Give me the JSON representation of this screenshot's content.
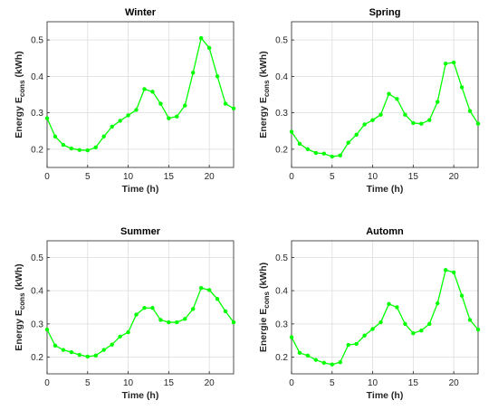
{
  "chart_data": [
    {
      "type": "line",
      "title": "Winter",
      "xlabel": "Time (h)",
      "ylabel": "Energy  E",
      "ylabel_sub": "cons",
      "ylabel_unit": "(kWh)",
      "x": [
        0,
        1,
        2,
        3,
        4,
        5,
        6,
        7,
        8,
        9,
        10,
        11,
        12,
        13,
        14,
        15,
        16,
        17,
        18,
        19,
        20,
        21,
        22,
        23
      ],
      "series": [
        {
          "color": "#00ff00",
          "values": [
            0.285,
            0.235,
            0.212,
            0.202,
            0.198,
            0.197,
            0.205,
            0.235,
            0.262,
            0.278,
            0.293,
            0.308,
            0.365,
            0.358,
            0.325,
            0.285,
            0.29,
            0.32,
            0.41,
            0.505,
            0.478,
            0.4,
            0.325,
            0.312
          ]
        }
      ],
      "xlim": [
        0,
        23
      ],
      "xticks": [
        0,
        5,
        10,
        15,
        20
      ],
      "ylim": [
        0.15,
        0.55
      ],
      "yticks": [
        0.2,
        0.3,
        0.4,
        0.5
      ],
      "grid": true
    },
    {
      "type": "line",
      "title": "Spring",
      "xlabel": "Time (h)",
      "ylabel": "Energy  E",
      "ylabel_sub": "cons",
      "ylabel_unit": "(kWh)",
      "x": [
        0,
        1,
        2,
        3,
        4,
        5,
        6,
        7,
        8,
        9,
        10,
        11,
        12,
        13,
        14,
        15,
        16,
        17,
        18,
        19,
        20,
        21,
        22,
        23
      ],
      "series": [
        {
          "color": "#00ff00",
          "values": [
            0.248,
            0.215,
            0.2,
            0.19,
            0.188,
            0.18,
            0.183,
            0.218,
            0.24,
            0.268,
            0.28,
            0.295,
            0.352,
            0.338,
            0.295,
            0.272,
            0.27,
            0.28,
            0.33,
            0.435,
            0.438,
            0.37,
            0.305,
            0.27
          ]
        }
      ],
      "xlim": [
        0,
        23
      ],
      "xticks": [
        0,
        5,
        10,
        15,
        20
      ],
      "ylim": [
        0.15,
        0.55
      ],
      "yticks": [
        0.2,
        0.3,
        0.4,
        0.5
      ],
      "grid": true
    },
    {
      "type": "line",
      "title": "Summer",
      "xlabel": "Time (h)",
      "ylabel": "Energy  E",
      "ylabel_sub": "cons",
      "ylabel_unit": "(kWh)",
      "x": [
        0,
        1,
        2,
        3,
        4,
        5,
        6,
        7,
        8,
        9,
        10,
        11,
        12,
        13,
        14,
        15,
        16,
        17,
        18,
        19,
        20,
        21,
        22,
        23
      ],
      "series": [
        {
          "color": "#00ff00",
          "values": [
            0.283,
            0.235,
            0.222,
            0.215,
            0.207,
            0.202,
            0.205,
            0.222,
            0.238,
            0.262,
            0.275,
            0.328,
            0.348,
            0.348,
            0.312,
            0.305,
            0.305,
            0.315,
            0.345,
            0.408,
            0.402,
            0.375,
            0.338,
            0.305
          ]
        }
      ],
      "xlim": [
        0,
        23
      ],
      "xticks": [
        0,
        5,
        10,
        15,
        20
      ],
      "ylim": [
        0.15,
        0.55
      ],
      "yticks": [
        0.2,
        0.3,
        0.4,
        0.5
      ],
      "grid": true
    },
    {
      "type": "line",
      "title": "Automn",
      "xlabel": "Time (h)",
      "ylabel": "Energie  E",
      "ylabel_sub": "cons",
      "ylabel_unit": "(kWh)",
      "x": [
        0,
        1,
        2,
        3,
        4,
        5,
        6,
        7,
        8,
        9,
        10,
        11,
        12,
        13,
        14,
        15,
        16,
        17,
        18,
        19,
        20,
        21,
        22,
        23
      ],
      "series": [
        {
          "color": "#00ff00",
          "values": [
            0.26,
            0.213,
            0.205,
            0.192,
            0.183,
            0.178,
            0.185,
            0.237,
            0.24,
            0.265,
            0.285,
            0.305,
            0.36,
            0.35,
            0.3,
            0.272,
            0.28,
            0.3,
            0.362,
            0.462,
            0.455,
            0.385,
            0.312,
            0.283
          ]
        }
      ],
      "xlim": [
        0,
        23
      ],
      "xticks": [
        0,
        5,
        10,
        15,
        20
      ],
      "ylim": [
        0.15,
        0.55
      ],
      "yticks": [
        0.2,
        0.3,
        0.4,
        0.5
      ],
      "grid": true
    }
  ]
}
